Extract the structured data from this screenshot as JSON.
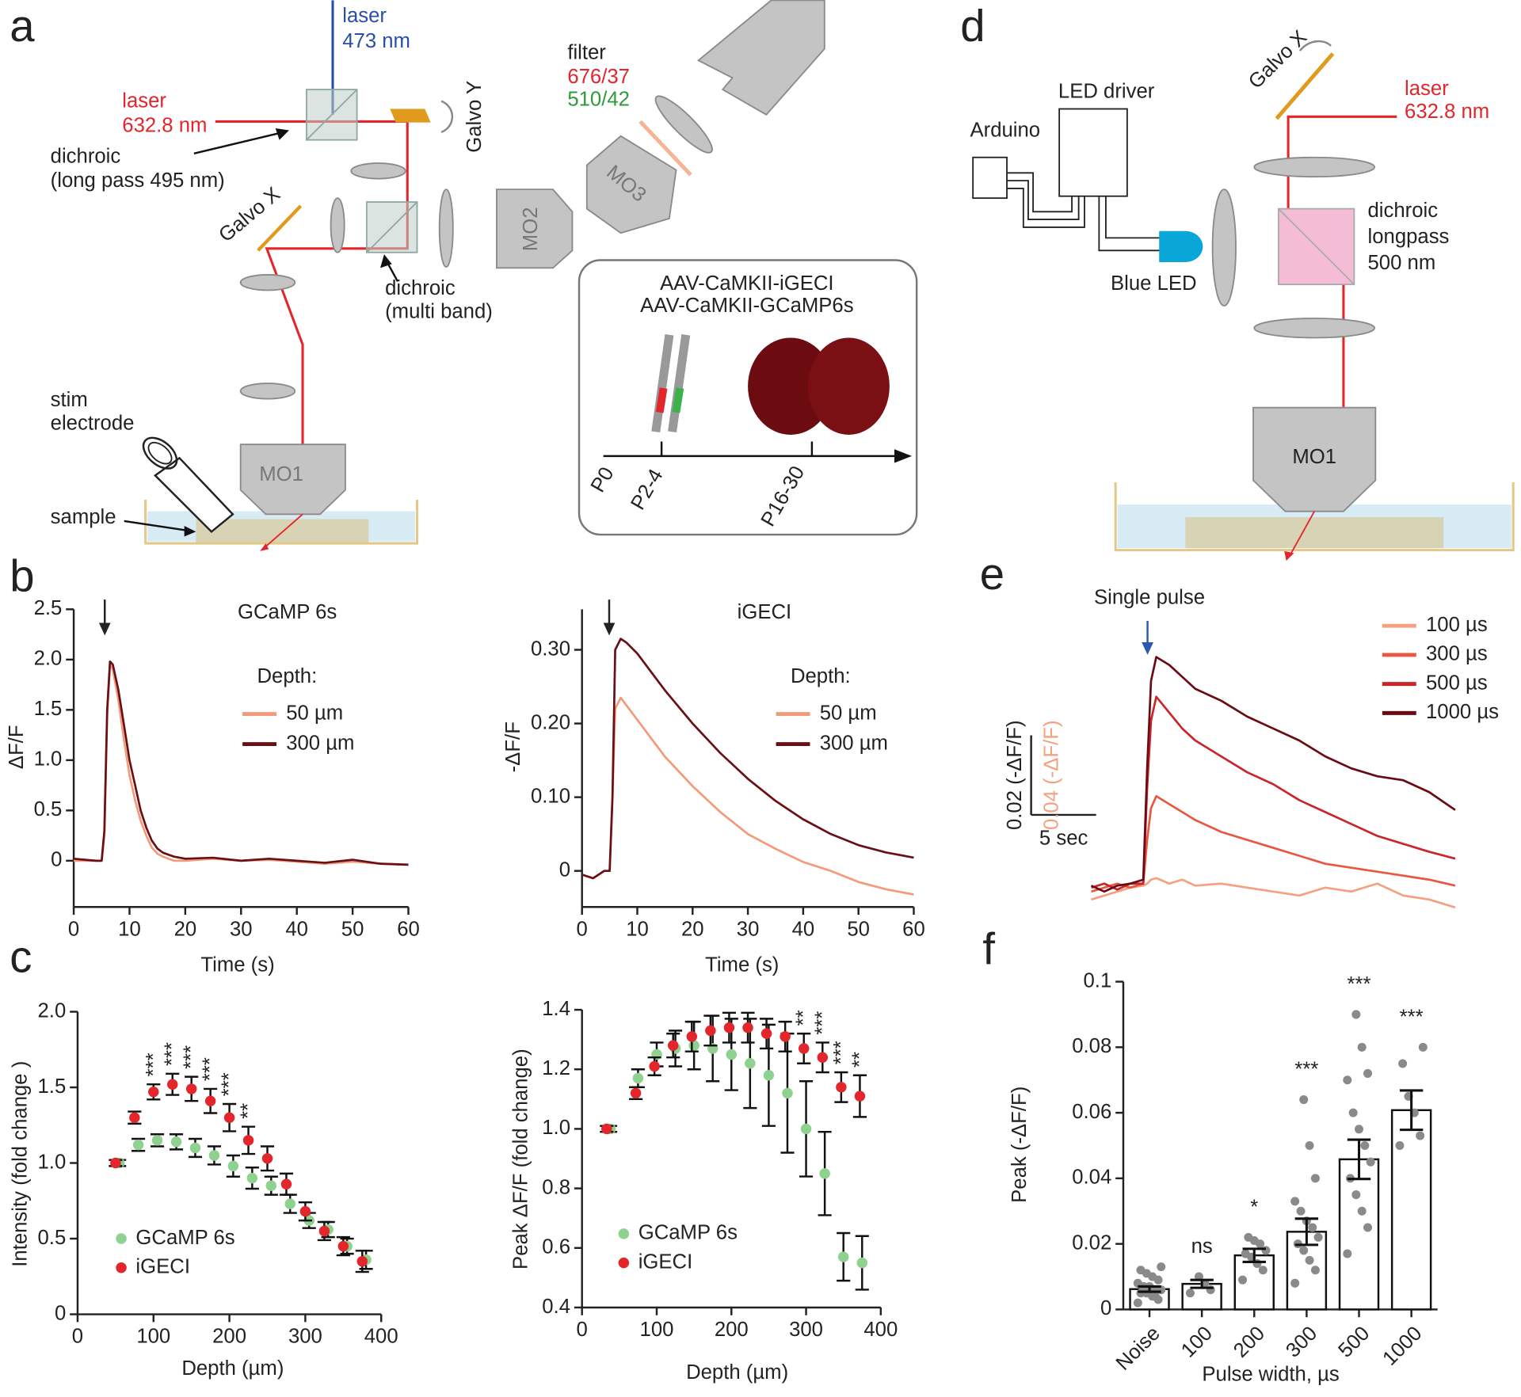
{
  "panel_labels": [
    "a",
    "b",
    "c",
    "d",
    "e",
    "f"
  ],
  "diagram_a": {
    "laser_blue": "laser",
    "wavelength_blue": "473 nm",
    "laser_red": "laser",
    "wavelength_red": "632.8 nm",
    "dichroic_1": "dichroic",
    "dichroic_1_spec": "(long pass 495 nm)",
    "galvo_y": "Galvo Y",
    "galvo_x": "Galvo X",
    "dichroic_2": "dichroic",
    "dichroic_2_spec": "(multi band)",
    "filter": "filter",
    "filter_red": "676/37",
    "filter_green": "510/42",
    "objective_3": "MO3",
    "objective_2": "MO2",
    "objective_1": "MO1",
    "stim_1": "stim",
    "stim_2": "electrode",
    "sample": "sample",
    "virus_1": "AAV-CaMKII-iGECI",
    "virus_2": "AAV-CaMKII-GCaMP6s",
    "timeline": [
      "P0",
      "P2-4",
      "P16-30"
    ]
  },
  "diagram_d": {
    "arduino": "Arduino",
    "led_driver": "LED driver",
    "blue_led": "Blue LED",
    "galvo_x": "Galvo X",
    "laser": "laser",
    "wavelength": "632.8 nm",
    "dichroic_1": "dichroic",
    "dichroic_2": "longpass",
    "dichroic_3": "500 nm",
    "objective": "MO1"
  },
  "chart_data": [
    {
      "type": "line",
      "title": "GCaMP 6s",
      "xlabel": "Time (s)",
      "ylabel": "ΔF/F",
      "legend_title": "Depth:",
      "x": [
        0,
        2,
        4,
        5,
        5.5,
        6,
        6.5,
        7,
        8,
        9,
        10,
        11,
        12,
        13,
        14,
        15,
        16,
        18,
        20,
        25,
        30,
        35,
        40,
        45,
        50,
        55,
        60
      ],
      "series": [
        {
          "name": "50 µm",
          "color": "#f39a7a",
          "values": [
            0.0,
            0.0,
            0.0,
            0.0,
            0.25,
            1.45,
            1.95,
            1.9,
            1.6,
            1.2,
            0.85,
            0.6,
            0.4,
            0.25,
            0.13,
            0.07,
            0.04,
            0.0,
            0.0,
            0.02,
            0.0,
            0.01,
            -0.01,
            -0.03,
            -0.01,
            -0.03,
            -0.04
          ]
        },
        {
          "name": "300 µm",
          "color": "#6b0f16",
          "values": [
            0.02,
            0.01,
            0.0,
            0.0,
            0.3,
            1.5,
            1.98,
            1.95,
            1.7,
            1.35,
            1.0,
            0.75,
            0.5,
            0.33,
            0.2,
            0.12,
            0.08,
            0.04,
            0.02,
            0.03,
            0.0,
            0.02,
            0.0,
            -0.02,
            0.01,
            -0.03,
            -0.04
          ]
        }
      ],
      "xlim": [
        0,
        60
      ],
      "ylim": [
        -0.46,
        2.5
      ],
      "xticks": [
        0,
        10,
        20,
        30,
        40,
        50,
        60
      ],
      "yticks": [
        0,
        0.5,
        {
          "value": 1,
          "label": "1.0"
        },
        1.5,
        {
          "value": 2,
          "label": "2.0"
        },
        2.5
      ]
    },
    {
      "type": "line",
      "title": "iGECI",
      "xlabel": "Time (s)",
      "ylabel": "-ΔF/F",
      "legend_title": "Depth:",
      "x": [
        0,
        2,
        4,
        5,
        5.5,
        6,
        7,
        8,
        10,
        12,
        15,
        20,
        25,
        30,
        35,
        40,
        45,
        50,
        55,
        60
      ],
      "series": [
        {
          "name": "50 µm",
          "color": "#f39a7a",
          "values": [
            -0.005,
            -0.01,
            0.0,
            0.0,
            0.1,
            0.22,
            0.235,
            0.225,
            0.205,
            0.185,
            0.155,
            0.115,
            0.08,
            0.05,
            0.03,
            0.012,
            0.0,
            -0.015,
            -0.025,
            -0.032
          ]
        },
        {
          "name": "300 µm",
          "color": "#6b0f16",
          "values": [
            -0.005,
            -0.01,
            0.0,
            0.0,
            0.1,
            0.3,
            0.315,
            0.31,
            0.295,
            0.275,
            0.245,
            0.2,
            0.16,
            0.125,
            0.095,
            0.07,
            0.05,
            0.035,
            0.025,
            0.018
          ]
        }
      ],
      "xlim": [
        0,
        60
      ],
      "ylim": [
        -0.049,
        0.355
      ],
      "xticks": [
        0,
        10,
        20,
        30,
        40,
        50,
        60
      ],
      "yticks": [
        0,
        {
          "value": 0.1,
          "label": "0.10"
        },
        {
          "value": 0.2,
          "label": "0.20"
        },
        {
          "value": 0.3,
          "label": "0.30"
        }
      ]
    },
    {
      "type": "scatter",
      "xlabel": "Depth (µm)",
      "ylabel": "Intensity (fold  change )",
      "series": [
        {
          "name": "GCaMP 6s",
          "color": "#8fd18f",
          "x": [
            55,
            80,
            105,
            130,
            155,
            180,
            205,
            230,
            255,
            280,
            305,
            330,
            355,
            380
          ],
          "values": [
            1.0,
            1.12,
            1.15,
            1.14,
            1.1,
            1.05,
            0.98,
            0.9,
            0.85,
            0.73,
            0.62,
            0.56,
            0.45,
            0.36
          ],
          "errors": [
            0.02,
            0.04,
            0.04,
            0.05,
            0.06,
            0.06,
            0.07,
            0.07,
            0.06,
            0.06,
            0.05,
            0.05,
            0.05,
            0.06
          ]
        },
        {
          "name": "iGECI",
          "color": "#e3262b",
          "x": [
            50,
            75,
            100,
            125,
            150,
            175,
            200,
            225,
            250,
            275,
            300,
            325,
            350,
            375
          ],
          "values": [
            1.0,
            1.3,
            1.47,
            1.52,
            1.49,
            1.41,
            1.3,
            1.15,
            1.03,
            0.86,
            0.68,
            0.55,
            0.45,
            0.35
          ],
          "errors": [
            0.02,
            0.04,
            0.05,
            0.07,
            0.08,
            0.08,
            0.09,
            0.09,
            0.08,
            0.07,
            0.06,
            0.06,
            0.06,
            0.07
          ],
          "significance": [
            null,
            null,
            "***",
            "***",
            "***",
            "***",
            "***",
            "**",
            null,
            null,
            null,
            null,
            null,
            null
          ]
        }
      ],
      "xlim": [
        0,
        400
      ],
      "ylim": [
        0,
        2
      ],
      "xticks": [
        0,
        100,
        200,
        300,
        400
      ],
      "yticks": [
        0,
        0.5,
        {
          "value": 1,
          "label": "1.0"
        },
        1.5,
        {
          "value": 2,
          "label": "2.0"
        }
      ]
    },
    {
      "type": "scatter",
      "xlabel": "Depth (µm)",
      "ylabel": "Peak ΔF/F (fold change)",
      "series": [
        {
          "name": "GCaMP 6s",
          "color": "#8fd18f",
          "x": [
            38,
            75,
            100,
            125,
            150,
            175,
            200,
            225,
            250,
            275,
            300,
            325,
            350,
            375
          ],
          "values": [
            1.0,
            1.17,
            1.25,
            1.27,
            1.28,
            1.27,
            1.25,
            1.22,
            1.18,
            1.12,
            1.0,
            0.85,
            0.57,
            0.55
          ],
          "errors": [
            0.01,
            0.03,
            0.04,
            0.06,
            0.08,
            0.11,
            0.12,
            0.15,
            0.17,
            0.2,
            0.16,
            0.14,
            0.08,
            0.09
          ]
        },
        {
          "name": "iGECI",
          "color": "#e3262b",
          "x": [
            33,
            72,
            97,
            122,
            147,
            172,
            197,
            222,
            247,
            272,
            297,
            322,
            347,
            372
          ],
          "values": [
            1.0,
            1.12,
            1.21,
            1.28,
            1.31,
            1.33,
            1.34,
            1.34,
            1.32,
            1.31,
            1.27,
            1.24,
            1.14,
            1.11
          ],
          "errors": [
            0.01,
            0.02,
            0.03,
            0.04,
            0.05,
            0.05,
            0.05,
            0.05,
            0.05,
            0.05,
            0.05,
            0.05,
            0.05,
            0.07
          ],
          "significance": [
            null,
            null,
            null,
            null,
            null,
            null,
            null,
            null,
            null,
            null,
            "**",
            "***",
            "***",
            "**"
          ]
        }
      ],
      "xlim": [
        0,
        400
      ],
      "ylim": [
        0.4,
        1.4
      ],
      "xticks": [
        0,
        100,
        200,
        300,
        400
      ],
      "yticks": [
        0.4,
        0.6,
        0.8,
        {
          "value": 1,
          "label": "1.0"
        },
        1.2,
        1.4
      ]
    },
    {
      "type": "line",
      "annotation": "Single pulse",
      "x": [
        0,
        1,
        2,
        3,
        4,
        4.3,
        4.6,
        5,
        6,
        7,
        8,
        10,
        12,
        14,
        16,
        18,
        20,
        22,
        24,
        26,
        28
      ],
      "series": [
        {
          "name": "100 µs",
          "color": "#f5a080",
          "values": [
            -0.003,
            -0.002,
            -0.001,
            0.0,
            0.0005,
            0.001,
            0.002,
            0.0024,
            0.001,
            0.002,
            0.0005,
            0.001,
            0.0,
            -0.001,
            -0.002,
            0.0,
            -0.001,
            0.001,
            -0.002,
            -0.003,
            -0.005
          ]
        },
        {
          "name": "300 µs",
          "color": "#e8573f",
          "values": [
            -0.001,
            0,
            0.001,
            0,
            0.001,
            0.012,
            0.02,
            0.023,
            0.021,
            0.019,
            0.017,
            0.014,
            0.012,
            0.01,
            0.008,
            0.006,
            0.005,
            0.004,
            0.003,
            0.002,
            0.0005
          ]
        },
        {
          "name": "500 µs",
          "color": "#c8262b",
          "values": [
            0,
            0.001,
            -0.0005,
            0.001,
            0.001,
            0.025,
            0.042,
            0.048,
            0.044,
            0.04,
            0.037,
            0.033,
            0.029,
            0.026,
            0.022,
            0.019,
            0.016,
            0.013,
            0.011,
            0.009,
            0.0073
          ]
        },
        {
          "name": "1000 µs",
          "color": "#6a0a12",
          "values": [
            0.0005,
            -0.001,
            0.0005,
            0.001,
            0.002,
            0.03,
            0.052,
            0.058,
            0.056,
            0.053,
            0.05,
            0.047,
            0.043,
            0.04,
            0.037,
            0.033,
            0.03,
            0.028,
            0.027,
            0.024,
            0.0195
          ]
        }
      ],
      "scalebar_y": 0.02,
      "scalebar_x": 5,
      "scalebar_labels": [
        "0.02 (-ΔF/F)",
        "0.04 (-ΔF/F)",
        "5 sec"
      ]
    },
    {
      "type": "bar",
      "xlabel": "Pulse width, µs",
      "ylabel": "Peak  (-ΔF/F)",
      "categories": [
        "Noise",
        "100",
        "200",
        "300",
        "500",
        "1000"
      ],
      "values": [
        0.0062,
        0.0078,
        0.0165,
        0.0237,
        0.0458,
        0.0608
      ],
      "errors": [
        0.0008,
        0.0012,
        0.002,
        0.004,
        0.006,
        0.006
      ],
      "significance": [
        null,
        "ns",
        "*",
        "***",
        "***",
        "***"
      ],
      "points": [
        [
          0.002,
          0.003,
          0.004,
          0.005,
          0.005,
          0.006,
          0.006,
          0.007,
          0.007,
          0.008,
          0.009,
          0.01,
          0.011,
          0.012,
          0.013,
          0.004,
          0.005,
          0.006
        ],
        [
          0.005,
          0.006,
          0.008,
          0.01
        ],
        [
          0.009,
          0.012,
          0.014,
          0.016,
          0.017,
          0.018,
          0.02,
          0.021,
          0.022
        ],
        [
          0.008,
          0.012,
          0.015,
          0.018,
          0.02,
          0.022,
          0.025,
          0.027,
          0.03,
          0.033,
          0.04,
          0.05,
          0.064
        ],
        [
          0.017,
          0.025,
          0.03,
          0.035,
          0.04,
          0.045,
          0.05,
          0.055,
          0.06,
          0.07,
          0.072,
          0.08,
          0.09
        ],
        [
          0.05,
          0.053,
          0.06,
          0.065,
          0.075,
          0.08
        ]
      ],
      "ylim": [
        0,
        0.1
      ],
      "yticks": [
        0,
        0.02,
        0.04,
        0.06,
        0.08,
        0.1
      ]
    }
  ]
}
